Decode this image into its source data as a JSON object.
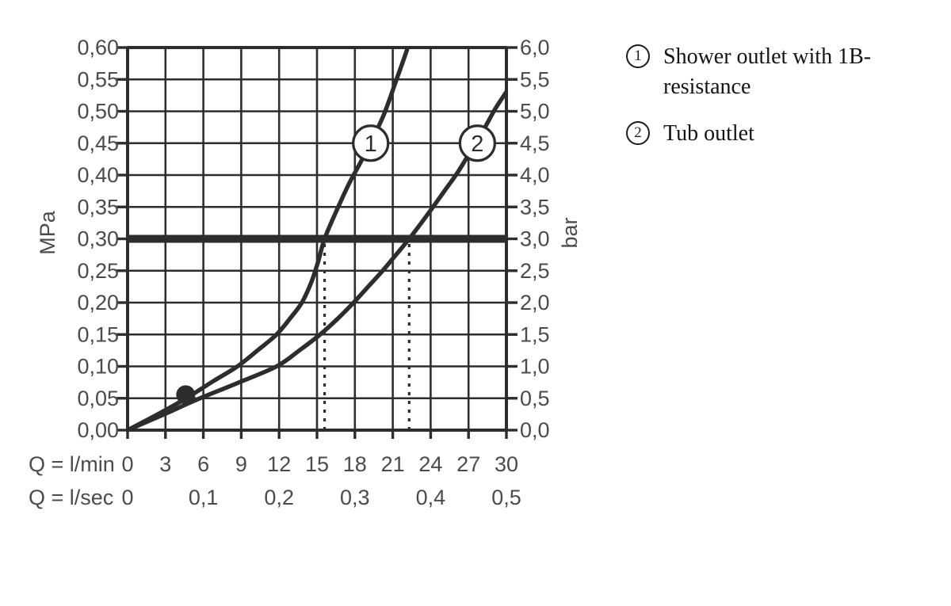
{
  "page": {
    "background": "#ffffff"
  },
  "legend": {
    "items": [
      {
        "number": "1",
        "label": "Shower outlet with 1B-resistance"
      },
      {
        "number": "2",
        "label": "Tub outlet"
      }
    ]
  },
  "chart_data": {
    "type": "line",
    "title": "",
    "x_axis": {
      "max_lmin": 30,
      "grid_step_lmin": 3,
      "rows": [
        {
          "label": "Q = l/min",
          "ticks": [
            "0",
            "3",
            "6",
            "9",
            "12",
            "15",
            "18",
            "21",
            "24",
            "27",
            "30"
          ]
        },
        {
          "label": "Q = l/sec",
          "ticks": [
            {
              "label": "0",
              "grid_index": 0
            },
            {
              "label": "0,1",
              "grid_index": 2
            },
            {
              "label": "0,2",
              "grid_index": 4
            },
            {
              "label": "0,3",
              "grid_index": 6
            },
            {
              "label": "0,4",
              "grid_index": 8
            },
            {
              "label": "0,5",
              "grid_index": 10
            }
          ]
        }
      ]
    },
    "y_axis_left": {
      "unit": "MPa",
      "max": 0.6,
      "ticks_top_down": [
        "0,60",
        "0,55",
        "0,50",
        "0,45",
        "0,40",
        "0,35",
        "0,30",
        "0,25",
        "0,20",
        "0,15",
        "0,10",
        "0,05",
        "0,00"
      ]
    },
    "y_axis_right": {
      "unit": "bar",
      "max": 6.0,
      "ticks_top_down": [
        "6,0",
        "5,5",
        "5,0",
        "4,5",
        "4,0",
        "3,5",
        "3,0",
        "2,5",
        "2,0",
        "1,5",
        "1,0",
        "0,5",
        "0,0"
      ]
    },
    "grid": {
      "on": true,
      "y_step_bar": 0.5
    },
    "reference_line": {
      "bar": 3.0,
      "mpa": 0.3
    },
    "guide_lines_lmin": [
      15.6,
      22.3
    ],
    "series": [
      {
        "name": "Shower outlet with 1B-resistance",
        "label": "1",
        "label_at": {
          "q": 19.25,
          "bar": 4.5
        },
        "q_at_3bar": 15.6,
        "points": [
          [
            0,
            0
          ],
          [
            2.4,
            0.25
          ],
          [
            4.65,
            0.5
          ],
          [
            6.8,
            0.77
          ],
          [
            8.7,
            1.0
          ],
          [
            10.35,
            1.26
          ],
          [
            11.8,
            1.5
          ],
          [
            12.9,
            1.76
          ],
          [
            13.8,
            2.0
          ],
          [
            14.55,
            2.32
          ],
          [
            15.1,
            2.65
          ],
          [
            15.6,
            3.0
          ],
          [
            16.5,
            3.42
          ],
          [
            17.5,
            3.85
          ],
          [
            18.45,
            4.2
          ],
          [
            19.35,
            4.55
          ],
          [
            20.3,
            4.95
          ],
          [
            21.3,
            5.5
          ],
          [
            22.1,
            5.95
          ],
          [
            22.45,
            6.2
          ]
        ]
      },
      {
        "name": "Tub outlet",
        "label": "2",
        "label_at": {
          "q": 27.7,
          "bar": 4.5
        },
        "q_at_3bar": 22.3,
        "points": [
          [
            0,
            0
          ],
          [
            2.8,
            0.24
          ],
          [
            5.5,
            0.48
          ],
          [
            8.6,
            0.73
          ],
          [
            11.8,
            1.0
          ],
          [
            13.6,
            1.25
          ],
          [
            15.25,
            1.5
          ],
          [
            16.65,
            1.75
          ],
          [
            17.9,
            2.0
          ],
          [
            19.1,
            2.26
          ],
          [
            20.2,
            2.5
          ],
          [
            21.3,
            2.76
          ],
          [
            22.3,
            3.0
          ],
          [
            23.3,
            3.26
          ],
          [
            24.3,
            3.53
          ],
          [
            25.2,
            3.78
          ],
          [
            26.1,
            4.03
          ],
          [
            26.95,
            4.3
          ],
          [
            27.7,
            4.53
          ],
          [
            28.45,
            4.8
          ],
          [
            29.15,
            5.05
          ],
          [
            30.05,
            5.32
          ]
        ]
      }
    ],
    "marker_dot": {
      "q": 4.6,
      "bar": 0.555
    },
    "colors": {
      "line": "#2d2d2d",
      "text": "#4b4b4b",
      "legend_text": "#141414",
      "background": "#ffffff"
    }
  }
}
